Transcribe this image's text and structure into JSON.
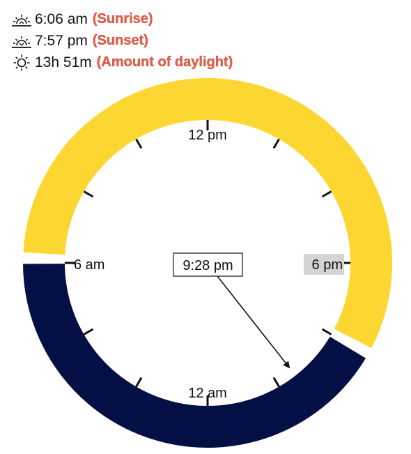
{
  "sunrise": {
    "time": "6:06 am",
    "tag": "(Sunrise)",
    "icon": "sunrise-icon"
  },
  "sunset": {
    "time": "7:57 pm",
    "tag": "(Sunset)",
    "icon": "sunset-icon"
  },
  "daylight": {
    "duration": "13h 51m",
    "tag": "(Amount of daylight)",
    "icon": "sun-icon"
  },
  "clock": {
    "labels": {
      "noon": "12 pm",
      "six_am": "6 am",
      "six_pm": "6 pm",
      "midnight": "12 am"
    },
    "now": "9:28 pm",
    "now_hours": 21.467,
    "sunrise_hours": 6.1,
    "sunset_hours": 19.95
  },
  "colors": {
    "day": "#fcd732",
    "night": "#040f46",
    "tag": "#e35d47",
    "highlight": "#d4d4d4"
  }
}
